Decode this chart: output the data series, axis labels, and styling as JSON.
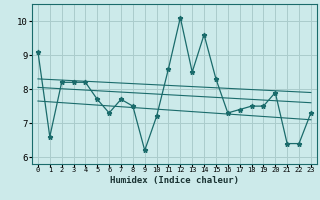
{
  "xlabel": "Humidex (Indice chaleur)",
  "bg_color": "#cceaea",
  "grid_color": "#aacccc",
  "line_color": "#1a6b6b",
  "xlim": [
    -0.5,
    23.5
  ],
  "ylim": [
    5.8,
    10.5
  ],
  "yticks": [
    6,
    7,
    8,
    9,
    10
  ],
  "xticks": [
    0,
    1,
    2,
    3,
    4,
    5,
    6,
    7,
    8,
    9,
    10,
    11,
    12,
    13,
    14,
    15,
    16,
    17,
    18,
    19,
    20,
    21,
    22,
    23
  ],
  "data_x": [
    0,
    1,
    2,
    3,
    4,
    5,
    6,
    7,
    8,
    9,
    10,
    11,
    12,
    13,
    14,
    15,
    16,
    17,
    18,
    19,
    20,
    21,
    22,
    23
  ],
  "data_y": [
    9.1,
    6.6,
    8.2,
    8.2,
    8.2,
    7.7,
    7.3,
    7.7,
    7.5,
    6.2,
    7.2,
    8.6,
    10.1,
    8.5,
    9.6,
    8.3,
    7.3,
    7.4,
    7.5,
    7.5,
    7.9,
    6.4,
    6.4,
    7.3
  ],
  "trend1_x": [
    0,
    23
  ],
  "trend1_y": [
    8.3,
    7.9
  ],
  "trend2_x": [
    0,
    23
  ],
  "trend2_y": [
    8.05,
    7.6
  ],
  "trend3_x": [
    0,
    23
  ],
  "trend3_y": [
    7.65,
    7.1
  ]
}
